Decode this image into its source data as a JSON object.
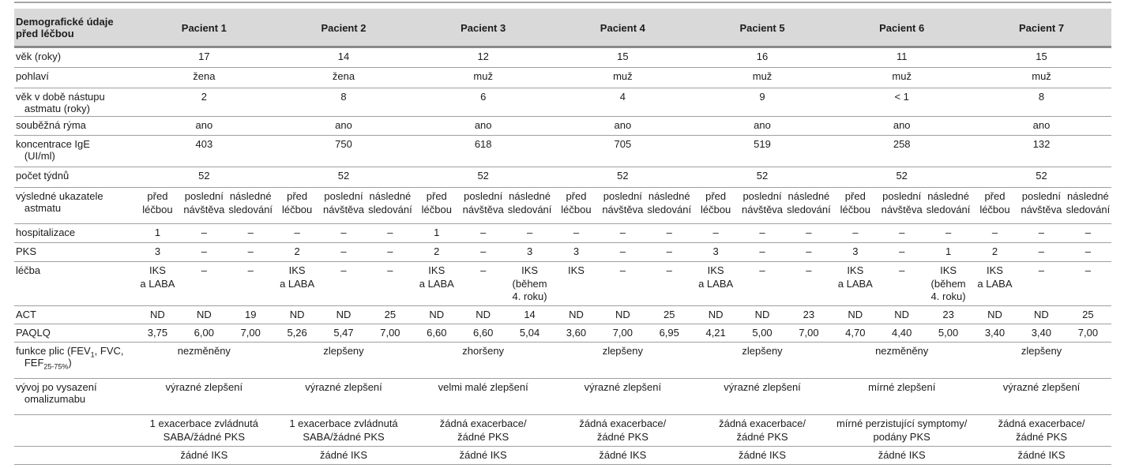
{
  "colors": {
    "header_bg": "#d9d9d9",
    "rule": "#9f9f9f",
    "rule_dark": "#8a8a8a",
    "text": "#1c1c1c"
  },
  "table": {
    "corner": "Demografické údaje\npřed léčbou",
    "patients": [
      "Pacient 1",
      "Pacient 2",
      "Pacient 3",
      "Pacient 4",
      "Pacient 5",
      "Pacient 6",
      "Pacient 7"
    ],
    "sub_headers": [
      "před\nléčbou",
      "poslední\nnávštěva",
      "následné\nsledování"
    ],
    "rows": [
      {
        "kind": "demo",
        "key": "vek",
        "label": "věk (roky)",
        "values": [
          "17",
          "14",
          "12",
          "15",
          "16",
          "11",
          "15"
        ]
      },
      {
        "kind": "demo",
        "key": "pohlavi",
        "label": "pohlaví",
        "values": [
          "žena",
          "žena",
          "muž",
          "muž",
          "muž",
          "muž",
          "muž"
        ]
      },
      {
        "kind": "demo",
        "key": "vek-nastupu",
        "label": "věk v době nástupu\n   astmatu (roky)",
        "values": [
          "2",
          "8",
          "6",
          "4",
          "9",
          "< 1",
          "8"
        ]
      },
      {
        "kind": "demo",
        "key": "soubezna-ryma",
        "label": "souběžná rýma",
        "values": [
          "ano",
          "ano",
          "ano",
          "ano",
          "ano",
          "ano",
          "ano"
        ]
      },
      {
        "kind": "demo",
        "key": "koncentrace-ige",
        "label": "koncentrace IgE\n   (UI/ml)",
        "values": [
          "403",
          "750",
          "618",
          "705",
          "519",
          "258",
          "132"
        ]
      },
      {
        "kind": "demo",
        "key": "pocet-tydnu",
        "label": "počet týdnů",
        "values": [
          "52",
          "52",
          "52",
          "52",
          "52",
          "52",
          "52"
        ]
      },
      {
        "kind": "subheader",
        "key": "vysledne-ukazatele",
        "label": "výsledné ukazatele\n   astmatu"
      },
      {
        "kind": "cells",
        "key": "hospitalizace",
        "label": "hospitalizace",
        "values": [
          "1",
          "–",
          "–",
          "–",
          "–",
          "–",
          "1",
          "–",
          "–",
          "–",
          "–",
          "–",
          "–",
          "–",
          "–",
          "–",
          "–",
          "–",
          "–",
          "–",
          "–"
        ]
      },
      {
        "kind": "cells",
        "key": "pks",
        "label": "PKS",
        "values": [
          "3",
          "–",
          "–",
          "2",
          "–",
          "–",
          "2",
          "–",
          "3",
          "3",
          "–",
          "–",
          "3",
          "–",
          "–",
          "3",
          "–",
          "1",
          "2",
          "–",
          "–"
        ]
      },
      {
        "kind": "cells",
        "key": "lecba",
        "label": "léčba",
        "values": [
          "IKS\na LABA",
          "–",
          "–",
          "IKS\na LABA",
          "–",
          "–",
          "IKS\na LABA",
          "–",
          "IKS\n(během\n4. roku)",
          "IKS",
          "–",
          "–",
          "IKS\na LABA",
          "–",
          "–",
          "IKS\na LABA",
          "–",
          "IKS\n(během\n4. roku)",
          "IKS\na LABA",
          "–",
          "–"
        ]
      },
      {
        "kind": "cells",
        "key": "act",
        "label": "ACT",
        "values": [
          "ND",
          "ND",
          "19",
          "ND",
          "ND",
          "25",
          "ND",
          "ND",
          "14",
          "ND",
          "ND",
          "25",
          "ND",
          "ND",
          "23",
          "ND",
          "ND",
          "23",
          "ND",
          "ND",
          "25"
        ]
      },
      {
        "kind": "cells",
        "key": "paqlq",
        "label": "PAQLQ",
        "values": [
          "3,75",
          "6,00",
          "7,00",
          "5,26",
          "5,47",
          "7,00",
          "6,60",
          "6,60",
          "5,04",
          "3,60",
          "7,00",
          "6,95",
          "4,21",
          "5,00",
          "7,00",
          "4,70",
          "4,40",
          "5,00",
          "3,40",
          "3,40",
          "7,00"
        ]
      },
      {
        "kind": "demo",
        "key": "funkce-plic",
        "label_rich": [
          {
            "t": "funkce plic (FEV"
          },
          {
            "s": "1"
          },
          {
            "t": ", FVC,"
          },
          {
            "n": true
          },
          {
            "t": "   FEF"
          },
          {
            "s": "25-75%"
          },
          {
            "t": ")"
          }
        ],
        "values": [
          "nezměněny",
          "zlepšeny",
          "zhoršeny",
          "zlepšeny",
          "zlepšeny",
          "nezměněny",
          "zlepšeny"
        ]
      },
      {
        "kind": "demo",
        "key": "vyvoj-po-vysazeni",
        "label": "vývoj po vysazení\n   omalizumabu",
        "values": [
          "výrazné zlepšení",
          "výrazné zlepšení",
          "velmi malé zlepšení",
          "výrazné zlepšení",
          "výrazné zlepšení",
          "mírné zlepšení",
          "výrazné zlepšení"
        ]
      },
      {
        "kind": "demo",
        "key": "exacerbace",
        "label": "",
        "values": [
          "1 exacerbace zvládnutá\nSABA/žádné PKS",
          "1 exacerbace zvládnutá\nSABA/žádné PKS",
          "žádná exacerbace/\nžádné PKS",
          "žádná exacerbace/\nžádné PKS",
          "žádná exacerbace/\nžádné PKS",
          "mírné perzistující symptomy/\npodány PKS",
          "žádná exacerbace/\nžádné PKS"
        ]
      },
      {
        "kind": "demo",
        "key": "zadne-iks",
        "label": "",
        "values": [
          "žádné IKS",
          "žádné IKS",
          "žádné IKS",
          "žádné IKS",
          "žádné IKS",
          "žádné IKS",
          "žádné IKS"
        ]
      }
    ]
  }
}
